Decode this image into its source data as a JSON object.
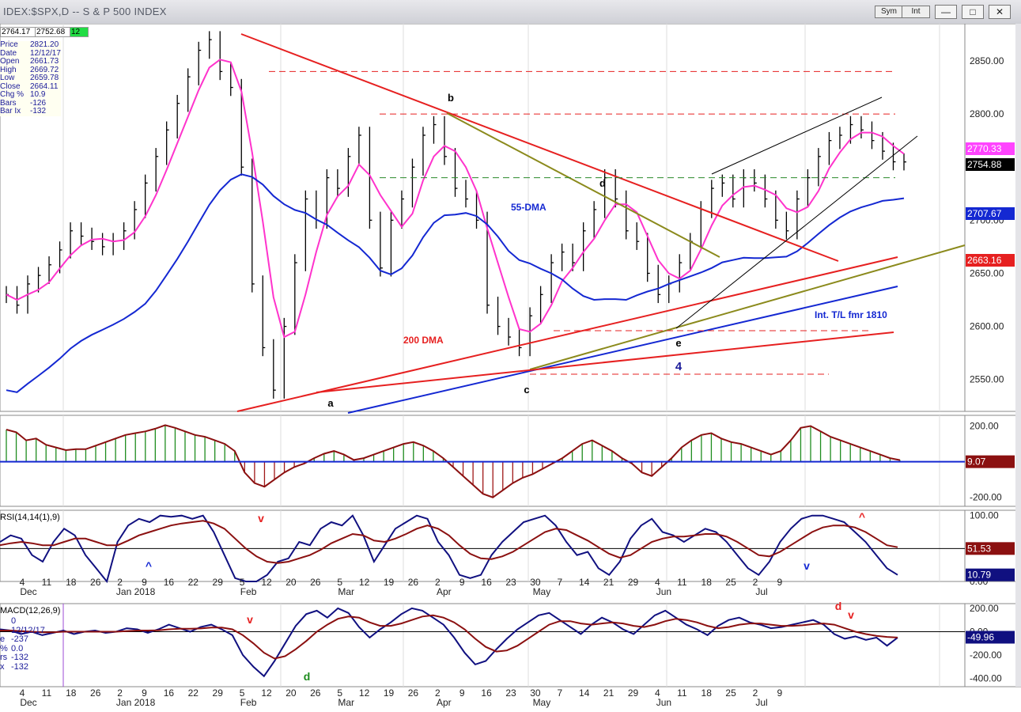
{
  "window": {
    "title": "IDEX:$SPX,D -- S & P 500 INDEX",
    "buttons": [
      "Sym",
      "Int"
    ],
    "controls": [
      "minimize",
      "restore",
      "close"
    ]
  },
  "header_values": {
    "v1": "2764.17",
    "v2": "2752.68",
    "v3": "12"
  },
  "info_panel": [
    {
      "label": "Price",
      "value": "2821.20"
    },
    {
      "label": "Date",
      "value": "12/12/17"
    },
    {
      "label": "Open",
      "value": "2661.73"
    },
    {
      "label": "High",
      "value": "2669.72"
    },
    {
      "label": "Low",
      "value": "2659.78"
    },
    {
      "label": "Close",
      "value": "2664.11"
    },
    {
      "label": "Chg %",
      "value": "10.9"
    },
    {
      "label": "Bars",
      "value": "-126"
    },
    {
      "label": "Bar Ix",
      "value": "-132"
    }
  ],
  "chart_data": {
    "type": "line",
    "title": "S & P 500 INDEX",
    "x_axis": {
      "tick_labels": [
        "4",
        "11",
        "18",
        "26",
        "2",
        "9",
        "16",
        "22",
        "29",
        "5",
        "12",
        "20",
        "26",
        "5",
        "12",
        "19",
        "26",
        "2",
        "9",
        "16",
        "23",
        "30",
        "7",
        "14",
        "21",
        "29",
        "4",
        "11",
        "18",
        "25",
        "2",
        "9"
      ],
      "month_labels": [
        "Dec",
        "Jan 2018",
        "Feb",
        "Mar",
        "Apr",
        "May",
        "Jun",
        "Jul"
      ]
    },
    "price_panel": {
      "y_ticks": [
        "2850.00",
        "2800.00",
        "2750.00",
        "2700.00",
        "2650.00",
        "2600.00",
        "2550.00"
      ],
      "ylim": [
        2520,
        2885
      ],
      "value_tags": [
        {
          "value": "2770.33",
          "color": "#ff44ff"
        },
        {
          "value": "2754.88",
          "color": "#000000"
        },
        {
          "value": "2707.67",
          "color": "#1428d2"
        },
        {
          "value": "2663.16",
          "color": "#e62020"
        }
      ],
      "wave_labels": [
        "a",
        "b",
        "c",
        "d",
        "e",
        "4"
      ],
      "annotations": [
        "55-DMA",
        "200 DMA",
        "Int. T/L fmr 1810"
      ],
      "close_series": [
        2630,
        2620,
        2640,
        2648,
        2658,
        2672,
        2690,
        2685,
        2680,
        2675,
        2680,
        2690,
        2710,
        2735,
        2760,
        2785,
        2810,
        2835,
        2860,
        2870,
        2840,
        2825,
        2750,
        2640,
        2580,
        2540,
        2600,
        2660,
        2720,
        2700,
        2740,
        2730,
        2760,
        2780,
        2700,
        2655,
        2700,
        2720,
        2750,
        2780,
        2790,
        2760,
        2730,
        2720,
        2700,
        2620,
        2600,
        2590,
        2580,
        2610,
        2630,
        2660,
        2670,
        2660,
        2690,
        2710,
        2740,
        2720,
        2690,
        2680,
        2650,
        2630,
        2640,
        2660,
        2680,
        2710,
        2730,
        2735,
        2720,
        2740,
        2735,
        2720,
        2700,
        2690,
        2720,
        2740,
        2760,
        2775,
        2780,
        2790,
        2785,
        2775,
        2765,
        2755,
        2754.88
      ]
    },
    "histogram_panel": {
      "y_ticks": [
        "200.00",
        "0.00",
        "-200.00"
      ],
      "ylim": [
        -250,
        260
      ],
      "value_tag": "9.07",
      "values": [
        180,
        165,
        120,
        130,
        95,
        80,
        65,
        70,
        70,
        90,
        110,
        130,
        150,
        160,
        170,
        185,
        205,
        190,
        170,
        150,
        140,
        120,
        100,
        60,
        -60,
        -120,
        -140,
        -100,
        -60,
        -30,
        -10,
        20,
        45,
        60,
        40,
        10,
        20,
        40,
        60,
        80,
        100,
        110,
        90,
        60,
        20,
        -30,
        -80,
        -130,
        -180,
        -200,
        -160,
        -120,
        -90,
        -70,
        -40,
        -10,
        20,
        60,
        100,
        120,
        90,
        60,
        20,
        -10,
        -60,
        -80,
        -30,
        20,
        80,
        120,
        150,
        160,
        130,
        110,
        100,
        80,
        60,
        40,
        60,
        120,
        190,
        200,
        170,
        140,
        120,
        100,
        80,
        60,
        40,
        20,
        9
      ]
    },
    "rsi_panel": {
      "label": "RSI(14,14(1),9)",
      "y_ticks": [
        "100.00",
        "50.00",
        "0.00"
      ],
      "ylim": [
        0,
        108
      ],
      "value_tags": [
        {
          "value": "51.53",
          "color": "#8b1010"
        },
        {
          "value": "10.79",
          "color": "#101080"
        }
      ],
      "markers": [
        "^",
        "v",
        "v",
        "^",
        "v"
      ],
      "rsi_values": [
        60,
        70,
        65,
        40,
        30,
        60,
        80,
        70,
        40,
        20,
        0,
        60,
        85,
        95,
        90,
        100,
        98,
        100,
        95,
        100,
        75,
        40,
        5,
        0,
        0,
        10,
        30,
        35,
        60,
        55,
        80,
        90,
        85,
        100,
        70,
        30,
        55,
        80,
        90,
        100,
        95,
        60,
        40,
        10,
        5,
        10,
        40,
        60,
        75,
        90,
        95,
        100,
        85,
        60,
        40,
        45,
        20,
        10,
        30,
        65,
        85,
        95,
        75,
        70,
        60,
        70,
        80,
        75,
        60,
        40,
        20,
        10,
        30,
        60,
        80,
        95,
        100,
        100,
        95,
        90,
        75,
        60,
        40,
        20,
        10
      ],
      "signal_values": [
        55,
        58,
        60,
        58,
        55,
        55,
        60,
        65,
        65,
        60,
        55,
        55,
        62,
        70,
        75,
        80,
        85,
        88,
        90,
        92,
        88,
        80,
        65,
        50,
        38,
        30,
        28,
        30,
        35,
        40,
        48,
        58,
        65,
        72,
        70,
        62,
        60,
        65,
        72,
        80,
        85,
        80,
        70,
        55,
        42,
        35,
        34,
        38,
        45,
        55,
        65,
        75,
        80,
        78,
        70,
        62,
        52,
        42,
        36,
        40,
        50,
        60,
        65,
        68,
        68,
        70,
        72,
        72,
        68,
        60,
        50,
        40,
        38,
        45,
        55,
        65,
        75,
        82,
        85,
        85,
        82,
        75,
        65,
        55,
        52
      ]
    },
    "macd_panel": {
      "label": "MACD(12,26,9)",
      "y_ticks": [
        "200.00",
        "0.00",
        "-200.00",
        "-400.00"
      ],
      "ylim": [
        -470,
        240
      ],
      "value_tag": "-49.96",
      "markers": [
        "v",
        "d",
        "d",
        "v"
      ],
      "info_panel": [
        {
          "label": "",
          "value": "0"
        },
        {
          "label": "",
          "value": "12/12/17"
        },
        {
          "label": "e",
          "value": "-237"
        },
        {
          "label": "%",
          "value": "0.0"
        },
        {
          "label": "rs",
          "value": "-132"
        },
        {
          "label": "x",
          "value": "-132"
        }
      ],
      "macd_values": [
        20,
        10,
        -20,
        0,
        -30,
        -10,
        10,
        -20,
        0,
        10,
        -10,
        0,
        30,
        20,
        -10,
        20,
        60,
        30,
        0,
        40,
        60,
        20,
        -30,
        -200,
        -300,
        -380,
        -250,
        -100,
        50,
        150,
        180,
        120,
        200,
        160,
        40,
        -50,
        20,
        80,
        150,
        200,
        180,
        120,
        60,
        -50,
        -180,
        -280,
        -250,
        -150,
        -60,
        20,
        80,
        140,
        160,
        100,
        40,
        -20,
        60,
        120,
        80,
        20,
        -20,
        60,
        140,
        180,
        120,
        60,
        20,
        -30,
        50,
        100,
        120,
        80,
        60,
        30,
        40,
        60,
        80,
        100,
        60,
        -20,
        -60,
        -40,
        -70,
        -50,
        -120,
        -49.96
      ],
      "signal_values": [
        10,
        10,
        5,
        0,
        -5,
        -5,
        0,
        0,
        0,
        0,
        0,
        0,
        5,
        10,
        10,
        12,
        20,
        25,
        25,
        28,
        35,
        35,
        20,
        -30,
        -100,
        -180,
        -230,
        -210,
        -150,
        -80,
        0,
        60,
        110,
        130,
        120,
        80,
        50,
        50,
        70,
        100,
        130,
        140,
        120,
        80,
        20,
        -60,
        -130,
        -170,
        -160,
        -120,
        -60,
        0,
        60,
        90,
        90,
        70,
        60,
        70,
        80,
        70,
        50,
        40,
        60,
        90,
        110,
        100,
        80,
        50,
        30,
        40,
        60,
        70,
        70,
        60,
        50,
        50,
        55,
        65,
        70,
        60,
        30,
        0,
        -20,
        -35,
        -45,
        -50
      ]
    }
  }
}
